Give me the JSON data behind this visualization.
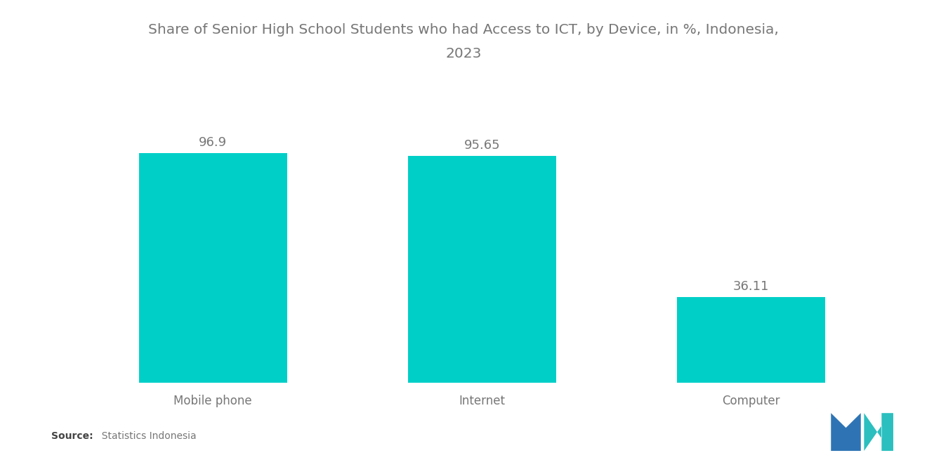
{
  "categories": [
    "Mobile phone",
    "Internet",
    "Computer"
  ],
  "values": [
    96.9,
    95.65,
    36.11
  ],
  "bar_color": "#00CFC8",
  "title_line1": "Share of Senior High School Students who had Access to ICT, by Device, in %, Indonesia,",
  "title_line2": "2023",
  "title_fontsize": 14.5,
  "value_fontsize": 13,
  "xlabel_fontsize": 12,
  "source_bold": "Source:",
  "source_normal": "  Statistics Indonesia",
  "background_color": "#ffffff",
  "text_color": "#777777",
  "ylim": [
    0,
    118
  ],
  "bar_width": 0.55,
  "xlim": [
    -0.55,
    2.55
  ],
  "logo_color_blue": "#2E74B5",
  "logo_color_teal": "#2BBFBF"
}
